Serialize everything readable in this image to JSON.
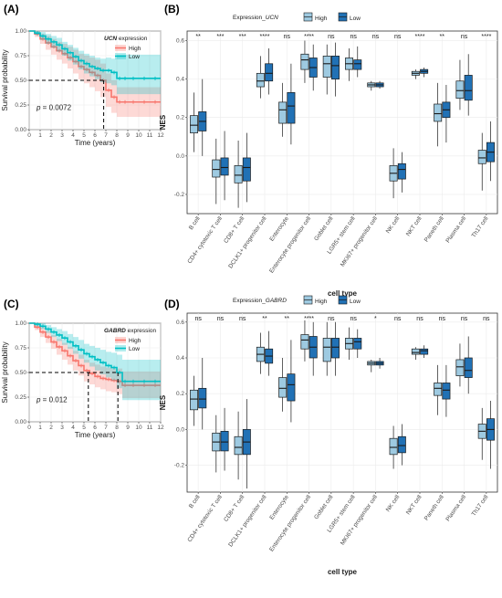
{
  "chart_data": [
    {
      "panel": "(A)",
      "type": "line",
      "legend_title": "UCN expression",
      "legend_title_italic": "UCN",
      "legend_title_rest": " expression",
      "series": [
        {
          "name": "High",
          "color": "#f8766d",
          "x": [
            0,
            0.5,
            1,
            1.5,
            2,
            2.5,
            3,
            3.5,
            4,
            4.5,
            5,
            5.5,
            6,
            6.5,
            7,
            7.5,
            8,
            8.5,
            9,
            10,
            11,
            12
          ],
          "y": [
            1.0,
            0.97,
            0.92,
            0.88,
            0.84,
            0.8,
            0.77,
            0.73,
            0.69,
            0.64,
            0.61,
            0.58,
            0.55,
            0.5,
            0.4,
            0.33,
            0.28,
            0.28,
            0.28,
            0.28,
            0.28,
            0.28
          ],
          "ci_low": [
            1.0,
            0.94,
            0.87,
            0.81,
            0.76,
            0.71,
            0.67,
            0.62,
            0.57,
            0.51,
            0.47,
            0.43,
            0.39,
            0.33,
            0.23,
            0.17,
            0.13,
            0.13,
            0.13,
            0.13,
            0.13,
            0.13
          ],
          "ci_high": [
            1.0,
            1.0,
            0.97,
            0.95,
            0.92,
            0.89,
            0.87,
            0.84,
            0.81,
            0.77,
            0.75,
            0.73,
            0.71,
            0.67,
            0.57,
            0.5,
            0.43,
            0.43,
            0.43,
            0.43,
            0.43,
            0.43
          ]
        },
        {
          "name": "Low",
          "color": "#00bfc4",
          "x": [
            0,
            0.5,
            1,
            1.5,
            2,
            2.5,
            3,
            3.5,
            4,
            4.5,
            5,
            5.5,
            6,
            6.5,
            7,
            7.5,
            8,
            8.5,
            9,
            10,
            11,
            12
          ],
          "y": [
            1.0,
            0.98,
            0.95,
            0.92,
            0.89,
            0.86,
            0.82,
            0.78,
            0.74,
            0.7,
            0.67,
            0.64,
            0.62,
            0.6,
            0.6,
            0.58,
            0.52,
            0.52,
            0.52,
            0.52,
            0.52,
            0.52
          ],
          "ci_low": [
            1.0,
            0.96,
            0.91,
            0.87,
            0.83,
            0.79,
            0.75,
            0.7,
            0.66,
            0.61,
            0.57,
            0.54,
            0.51,
            0.48,
            0.47,
            0.45,
            0.36,
            0.36,
            0.36,
            0.36,
            0.36,
            0.36
          ],
          "ci_high": [
            1.0,
            1.0,
            0.99,
            0.97,
            0.95,
            0.93,
            0.89,
            0.86,
            0.83,
            0.8,
            0.77,
            0.75,
            0.73,
            0.72,
            0.73,
            0.72,
            0.76,
            0.76,
            0.76,
            0.76,
            0.76,
            0.76
          ]
        }
      ],
      "median_lines": [
        6.8
      ],
      "xlabel": "Time (years)",
      "ylabel": "Survival probability",
      "xticks": [
        0,
        1,
        2,
        3,
        4,
        5,
        6,
        7,
        8,
        9,
        10,
        11,
        12
      ],
      "yticks": [
        "0.00",
        "0.25",
        "0.50",
        "0.75",
        "1.00"
      ],
      "xlim": [
        0,
        12
      ],
      "ylim": [
        0,
        1
      ],
      "p_prefix": "p",
      "p_value": "= 0.0072"
    },
    {
      "panel": "(B)",
      "type": "box",
      "legend_title": "Expression_UCN",
      "legend_title_plain": "Expression_",
      "legend_title_italic": "UCN",
      "legend": [
        "High",
        "Low"
      ],
      "colors": {
        "High": "#9ecae1",
        "Low": "#2171b5"
      },
      "xlabel": "cell type",
      "ylabel": "NES",
      "yticks": [
        "-0.2",
        "0.0",
        "0.2",
        "0.4",
        "0.6"
      ],
      "ylim": [
        -0.3,
        0.65
      ],
      "categories": [
        "B cell",
        "CD4+ cytotoxic T cell",
        "CD8+ T cell",
        "DCLK1+ progenitor cell",
        "Enterocyte",
        "Enterocyte progenitor cell",
        "Goblet cell",
        "LGR5+ stem cell",
        "MKI67+ progenitor cell",
        "NK cell",
        "NKT cell",
        "Paneth cell",
        "Plasma cell",
        "Th17 cell"
      ],
      "significance": [
        "**",
        "***",
        "***",
        "****",
        "ns",
        "****",
        "ns",
        "ns",
        "ns",
        "ns",
        "****",
        "**",
        "ns",
        "****"
      ],
      "series": [
        {
          "name": "High",
          "boxes": [
            [
              0.02,
              0.12,
              0.16,
              0.21,
              0.33
            ],
            [
              -0.25,
              -0.11,
              -0.07,
              -0.02,
              0.09
            ],
            [
              -0.27,
              -0.14,
              -0.1,
              -0.05,
              0.08
            ],
            [
              0.3,
              0.36,
              0.39,
              0.43,
              0.52
            ],
            [
              0.1,
              0.17,
              0.24,
              0.28,
              0.38
            ],
            [
              0.38,
              0.45,
              0.5,
              0.53,
              0.6
            ],
            [
              0.32,
              0.41,
              0.48,
              0.52,
              0.58
            ],
            [
              0.39,
              0.45,
              0.48,
              0.51,
              0.56
            ],
            [
              0.34,
              0.36,
              0.37,
              0.38,
              0.39
            ],
            [
              -0.22,
              -0.13,
              -0.09,
              -0.05,
              0.04
            ],
            [
              0.4,
              0.42,
              0.43,
              0.44,
              0.45
            ],
            [
              0.05,
              0.18,
              0.22,
              0.27,
              0.38
            ],
            [
              0.24,
              0.3,
              0.34,
              0.39,
              0.5
            ],
            [
              -0.18,
              -0.04,
              -0.01,
              0.03,
              0.12
            ]
          ]
        },
        {
          "name": "Low",
          "boxes": [
            [
              0.0,
              0.13,
              0.18,
              0.23,
              0.4
            ],
            [
              -0.23,
              -0.1,
              -0.06,
              -0.01,
              0.13
            ],
            [
              -0.24,
              -0.13,
              -0.06,
              -0.01,
              0.12
            ],
            [
              0.32,
              0.39,
              0.43,
              0.48,
              0.56
            ],
            [
              0.06,
              0.17,
              0.26,
              0.33,
              0.48
            ],
            [
              0.34,
              0.41,
              0.46,
              0.51,
              0.58
            ],
            [
              0.31,
              0.4,
              0.47,
              0.52,
              0.59
            ],
            [
              0.41,
              0.45,
              0.48,
              0.5,
              0.57
            ],
            [
              0.35,
              0.36,
              0.37,
              0.38,
              0.39
            ],
            [
              -0.19,
              -0.12,
              -0.07,
              -0.04,
              0.02
            ],
            [
              0.41,
              0.43,
              0.44,
              0.45,
              0.46
            ],
            [
              0.07,
              0.2,
              0.24,
              0.28,
              0.37
            ],
            [
              0.21,
              0.29,
              0.34,
              0.42,
              0.53
            ],
            [
              -0.13,
              -0.03,
              0.02,
              0.07,
              0.18
            ]
          ]
        }
      ]
    },
    {
      "panel": "(C)",
      "type": "line",
      "legend_title": "GABRD expression",
      "legend_title_italic": "GABRD",
      "legend_title_rest": " expression",
      "series": [
        {
          "name": "High",
          "color": "#f8766d",
          "x": [
            0,
            0.5,
            1,
            1.5,
            2,
            2.5,
            3,
            3.5,
            4,
            4.5,
            5,
            5.5,
            6,
            6.5,
            7,
            7.5,
            8,
            8.5,
            9,
            10,
            11,
            12
          ],
          "y": [
            1.0,
            0.96,
            0.91,
            0.86,
            0.81,
            0.76,
            0.72,
            0.67,
            0.62,
            0.57,
            0.52,
            0.49,
            0.46,
            0.44,
            0.43,
            0.42,
            0.41,
            0.37,
            0.37,
            0.37,
            0.37,
            0.37
          ],
          "ci_low": [
            1.0,
            0.93,
            0.86,
            0.8,
            0.74,
            0.68,
            0.63,
            0.58,
            0.52,
            0.47,
            0.41,
            0.38,
            0.35,
            0.33,
            0.31,
            0.3,
            0.28,
            0.24,
            0.24,
            0.24,
            0.24,
            0.24
          ],
          "ci_high": [
            1.0,
            0.99,
            0.96,
            0.92,
            0.88,
            0.84,
            0.8,
            0.76,
            0.72,
            0.68,
            0.63,
            0.6,
            0.58,
            0.56,
            0.55,
            0.54,
            0.54,
            0.51,
            0.51,
            0.51,
            0.51,
            0.51
          ]
        },
        {
          "name": "Low",
          "color": "#00bfc4",
          "x": [
            0,
            0.5,
            1,
            1.5,
            2,
            2.5,
            3,
            3.5,
            4,
            4.5,
            5,
            5.5,
            6,
            6.5,
            7,
            7.5,
            8,
            8.5,
            9,
            10,
            11,
            12
          ],
          "y": [
            1.0,
            0.99,
            0.97,
            0.94,
            0.91,
            0.88,
            0.85,
            0.81,
            0.77,
            0.73,
            0.69,
            0.66,
            0.63,
            0.6,
            0.57,
            0.55,
            0.5,
            0.41,
            0.41,
            0.41,
            0.41,
            0.41
          ],
          "ci_low": [
            1.0,
            0.97,
            0.94,
            0.9,
            0.86,
            0.82,
            0.78,
            0.74,
            0.69,
            0.64,
            0.6,
            0.56,
            0.52,
            0.48,
            0.45,
            0.42,
            0.34,
            0.22,
            0.22,
            0.22,
            0.22,
            0.22
          ],
          "ci_high": [
            1.0,
            1.0,
            1.0,
            0.98,
            0.96,
            0.94,
            0.92,
            0.89,
            0.86,
            0.83,
            0.79,
            0.77,
            0.75,
            0.73,
            0.71,
            0.7,
            0.68,
            0.63,
            0.63,
            0.63,
            0.63,
            0.63
          ]
        }
      ],
      "median_lines": [
        5.4,
        8.1
      ],
      "xlabel": "Time (years)",
      "ylabel": "Survival probability",
      "xticks": [
        0,
        1,
        2,
        3,
        4,
        5,
        6,
        7,
        8,
        9,
        10,
        11,
        12
      ],
      "yticks": [
        "0.00",
        "0.25",
        "0.50",
        "0.75",
        "1.00"
      ],
      "xlim": [
        0,
        12
      ],
      "ylim": [
        0,
        1
      ],
      "p_prefix": "p",
      "p_value": "= 0.012"
    },
    {
      "panel": "(D)",
      "type": "box",
      "legend_title": "Expression_GABRD",
      "legend_title_plain": "Expression_",
      "legend_title_italic": "GABRD",
      "legend": [
        "High",
        "Low"
      ],
      "colors": {
        "High": "#9ecae1",
        "Low": "#2171b5"
      },
      "xlabel": "cell type",
      "ylabel": "NES",
      "yticks": [
        "-0.2",
        "0.0",
        "0.2",
        "0.4",
        "0.6"
      ],
      "ylim": [
        -0.35,
        0.65
      ],
      "categories": [
        "B cell",
        "CD4+ cytotoxic T cell",
        "CD8+ T cell",
        "DCLK1+ progenitor cell",
        "Enterocyte",
        "Enterocyte progenitor cell",
        "Goblet cell",
        "LGR5+ stem cell",
        "MKI67+ progenitor cell",
        "NK cell",
        "NKT cell",
        "Paneth cell",
        "Plasma cell",
        "Th17 cell"
      ],
      "significance": [
        "ns",
        "ns",
        "ns",
        "**",
        "**",
        "****",
        "ns",
        "ns",
        "*",
        "ns",
        "ns",
        "ns",
        "ns",
        "ns"
      ],
      "series": [
        {
          "name": "High",
          "boxes": [
            [
              0.02,
              0.11,
              0.17,
              0.22,
              0.3
            ],
            [
              -0.24,
              -0.12,
              -0.07,
              -0.02,
              0.08
            ],
            [
              -0.28,
              -0.14,
              -0.1,
              -0.04,
              0.1
            ],
            [
              0.31,
              0.38,
              0.42,
              0.46,
              0.54
            ],
            [
              0.1,
              0.18,
              0.23,
              0.29,
              0.4
            ],
            [
              0.38,
              0.45,
              0.5,
              0.53,
              0.61
            ],
            [
              0.3,
              0.38,
              0.46,
              0.51,
              0.6
            ],
            [
              0.39,
              0.45,
              0.48,
              0.51,
              0.57
            ],
            [
              0.32,
              0.36,
              0.37,
              0.38,
              0.39
            ],
            [
              -0.22,
              -0.14,
              -0.1,
              -0.05,
              0.02
            ],
            [
              0.39,
              0.42,
              0.43,
              0.45,
              0.46
            ],
            [
              0.08,
              0.19,
              0.23,
              0.26,
              0.36
            ],
            [
              0.24,
              0.3,
              0.35,
              0.39,
              0.48
            ],
            [
              -0.17,
              -0.05,
              -0.01,
              0.03,
              0.12
            ]
          ]
        },
        {
          "name": "Low",
          "boxes": [
            [
              0.0,
              0.12,
              0.17,
              0.23,
              0.4
            ],
            [
              -0.23,
              -0.12,
              -0.07,
              -0.01,
              0.12
            ],
            [
              -0.33,
              -0.14,
              -0.07,
              0.0,
              0.17
            ],
            [
              0.3,
              0.37,
              0.41,
              0.45,
              0.55
            ],
            [
              0.04,
              0.16,
              0.25,
              0.31,
              0.5
            ],
            [
              0.3,
              0.4,
              0.46,
              0.52,
              0.6
            ],
            [
              0.3,
              0.4,
              0.46,
              0.51,
              0.6
            ],
            [
              0.4,
              0.45,
              0.49,
              0.51,
              0.56
            ],
            [
              0.34,
              0.36,
              0.37,
              0.38,
              0.4
            ],
            [
              -0.2,
              -0.13,
              -0.09,
              -0.04,
              0.03
            ],
            [
              0.4,
              0.42,
              0.44,
              0.45,
              0.47
            ],
            [
              0.07,
              0.17,
              0.22,
              0.26,
              0.36
            ],
            [
              0.2,
              0.29,
              0.33,
              0.4,
              0.52
            ],
            [
              -0.22,
              -0.06,
              0.0,
              0.06,
              0.16
            ]
          ]
        }
      ]
    }
  ]
}
